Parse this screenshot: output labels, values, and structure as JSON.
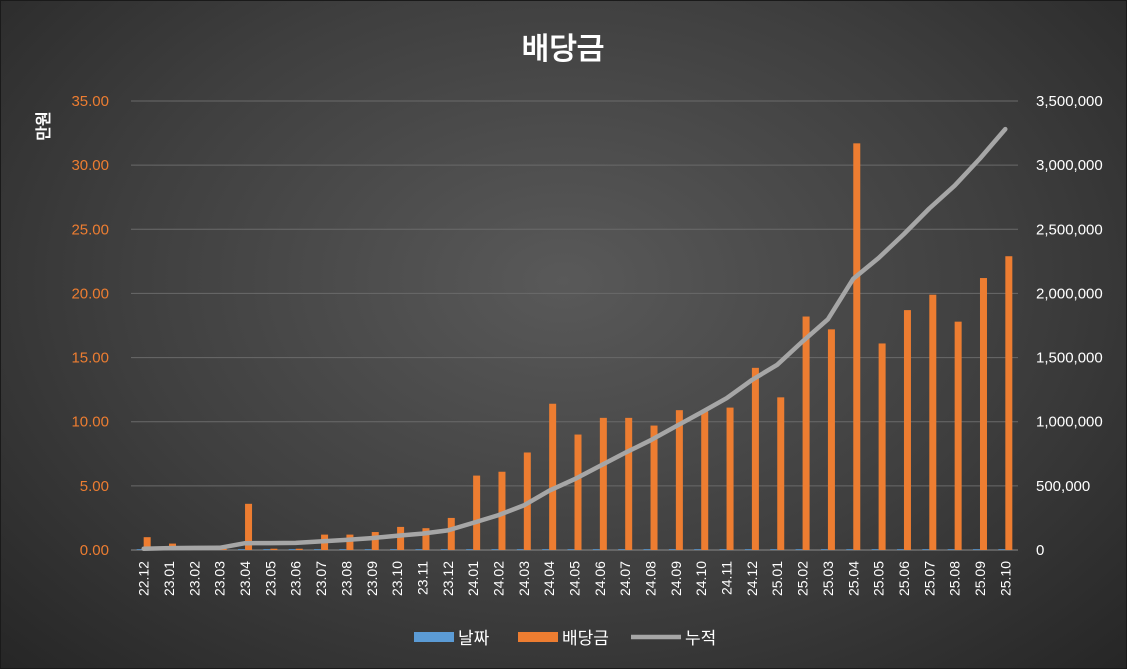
{
  "chart_data": {
    "type": "bar",
    "title": "배당금",
    "ylabel": "만원",
    "xlabel": "",
    "ylim": [
      0,
      35
    ],
    "y2lim": [
      0,
      3500000
    ],
    "y_ticks": [
      "0.00",
      "5.00",
      "10.00",
      "15.00",
      "20.00",
      "25.00",
      "30.00",
      "35.00"
    ],
    "y2_ticks": [
      "0",
      "500,000",
      "1,000,000",
      "1,500,000",
      "2,000,000",
      "2,500,000",
      "3,000,000",
      "3,500,000"
    ],
    "grid": true,
    "legend_position": "bottom",
    "categories": [
      "22.12",
      "23.01",
      "23.02",
      "23.03",
      "23.04",
      "23.05",
      "23.06",
      "23.07",
      "23.08",
      "23.09",
      "23.10",
      "23.11",
      "23.12",
      "24.01",
      "24.02",
      "24.03",
      "24.04",
      "24.05",
      "24.06",
      "24.07",
      "24.08",
      "24.09",
      "24.10",
      "24.11",
      "24.12",
      "25.01",
      "25.02",
      "25.03",
      "25.04",
      "25.05",
      "25.06",
      "25.07",
      "25.08",
      "25.09",
      "25.10"
    ],
    "series": [
      {
        "name": "날짜",
        "type": "bar",
        "axis": "left",
        "color": "#5b9bd5",
        "values": [
          0.05,
          0.05,
          0.05,
          0.05,
          0.05,
          0.05,
          0.05,
          0.05,
          0.05,
          0.05,
          0.05,
          0.05,
          0.05,
          0.05,
          0.05,
          0.05,
          0.05,
          0.05,
          0.05,
          0.05,
          0.05,
          0.05,
          0.05,
          0.05,
          0.05,
          0.05,
          0.05,
          0.05,
          0.05,
          0.05,
          0.05,
          0.05,
          0.05,
          0.05,
          0.05
        ]
      },
      {
        "name": "배당금",
        "type": "bar",
        "axis": "left",
        "color": "#ed7d31",
        "values": [
          1.0,
          0.5,
          0.1,
          0.1,
          3.6,
          0.1,
          0.1,
          1.2,
          1.2,
          1.4,
          1.8,
          1.7,
          2.5,
          5.8,
          6.1,
          7.6,
          11.4,
          9.0,
          10.3,
          10.3,
          9.7,
          10.9,
          10.8,
          11.1,
          14.2,
          11.9,
          18.2,
          17.2,
          31.7,
          16.1,
          18.7,
          19.9,
          17.8,
          21.2,
          22.9
        ]
      },
      {
        "name": "누적",
        "type": "line",
        "axis": "right",
        "color": "#a6a6a6",
        "values": [
          10000,
          15000,
          16000,
          17000,
          53000,
          54000,
          55000,
          67000,
          79000,
          93000,
          111000,
          128000,
          153000,
          211000,
          272000,
          348000,
          462000,
          552000,
          655000,
          758000,
          855000,
          964000,
          1072000,
          1183000,
          1325000,
          1444000,
          1626000,
          1798000,
          2115000,
          2276000,
          2463000,
          2662000,
          2840000,
          3052000,
          3281000
        ]
      }
    ]
  }
}
